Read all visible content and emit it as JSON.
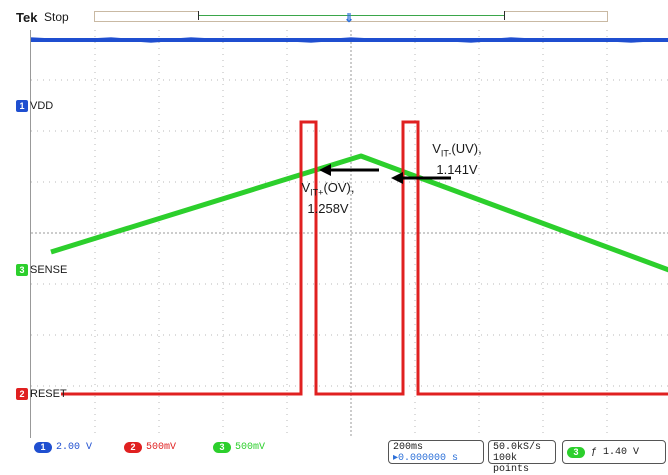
{
  "header": {
    "brand": "Tek",
    "status": "Stop"
  },
  "channels": {
    "ch1": {
      "num": "1",
      "name": "VDD",
      "color": "#1f4fd0"
    },
    "ch2": {
      "num": "2",
      "name": "RESET",
      "color": "#e02020"
    },
    "ch3": {
      "num": "3",
      "name": "SENSE",
      "color": "#2ccf2c"
    }
  },
  "annotations": {
    "uv": {
      "prefix": "V",
      "sub": "IT-",
      "suffix": "(UV),",
      "value": "1.141V"
    },
    "ov": {
      "prefix": "V",
      "sub": "IT+",
      "suffix": "(OV),",
      "value": "1.258V"
    }
  },
  "readouts": {
    "ch1": {
      "num": "1",
      "value": "2.00 V"
    },
    "ch2": {
      "num": "2",
      "value": "500mV"
    },
    "ch3": {
      "num": "3",
      "value": "500mV"
    },
    "timebase": "200ms",
    "position": "▸0.000000 s",
    "sample_rate": "50.0kS/s",
    "record": "100k points",
    "trigger_source": "3",
    "trigger_slope": "ƒ",
    "trigger_level": "1.40 V"
  }
}
